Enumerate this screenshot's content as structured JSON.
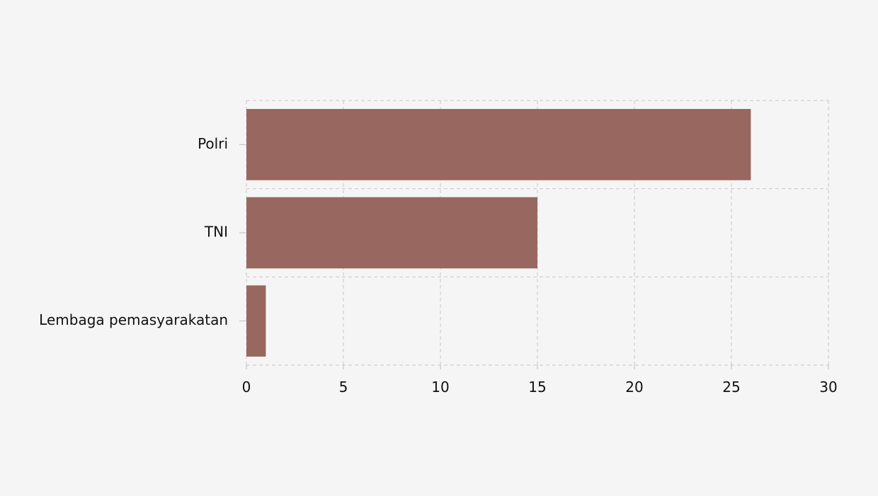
{
  "chart_data": {
    "type": "bar",
    "orientation": "horizontal",
    "categories": [
      "Polri",
      "TNI",
      "Lembaga pemasyarakatan"
    ],
    "values": [
      26,
      15,
      1
    ],
    "xlim": [
      0,
      30
    ],
    "x_ticks": [
      0,
      5,
      10,
      15,
      20,
      25,
      30
    ],
    "grid": true,
    "grid_style": "dashed",
    "bar_color": "#98675f",
    "background_color": "#f5f5f5"
  }
}
